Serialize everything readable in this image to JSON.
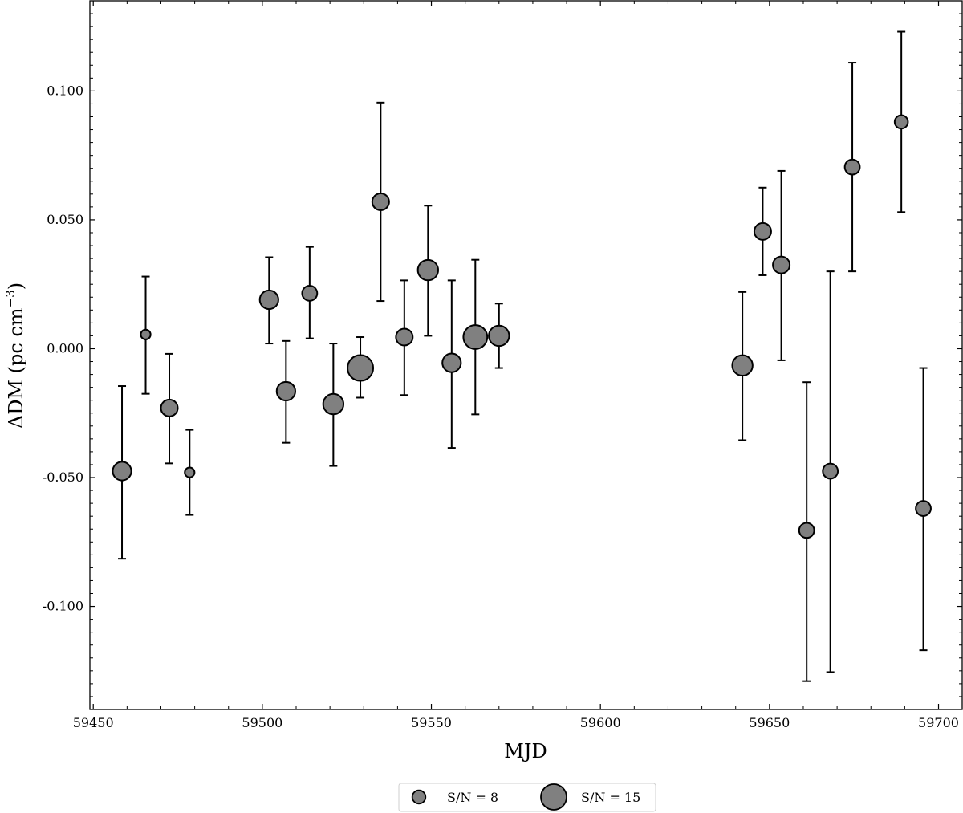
{
  "chart_data": {
    "type": "scatter",
    "title": "",
    "xlabel": "MJD",
    "ylabel": "ΔDM (pc cm",
    "ylabel_sup": "−3",
    "ylabel_close": ")",
    "xlim": [
      59449,
      59707
    ],
    "ylim": [
      -0.14,
      0.135
    ],
    "xticks": [
      59450,
      59500,
      59550,
      59600,
      59650,
      59700
    ],
    "xtick_labels": [
      "59450",
      "59500",
      "59550",
      "59600",
      "59650",
      "59700"
    ],
    "yticks": [
      -0.1,
      -0.05,
      0.0,
      0.05,
      0.1
    ],
    "ytick_labels": [
      "-0.100",
      "-0.050",
      "0.000",
      "0.050",
      "0.100"
    ],
    "grid": false,
    "marker_color": "#808080",
    "edge_color": "#000000",
    "legend_position": "below plot, center",
    "legend": [
      {
        "label": "S/N = 8",
        "snr": 8
      },
      {
        "label": "S/N = 15",
        "snr": 15
      }
    ],
    "points": [
      {
        "x": 59458.5,
        "y": -0.0475,
        "lo": -0.0815,
        "hi": -0.0145,
        "snr": 11
      },
      {
        "x": 59465.5,
        "y": 0.0055,
        "lo": -0.0175,
        "hi": 0.028,
        "snr": 6
      },
      {
        "x": 59472.5,
        "y": -0.023,
        "lo": -0.0445,
        "hi": -0.002,
        "snr": 10
      },
      {
        "x": 59478.5,
        "y": -0.048,
        "lo": -0.0645,
        "hi": -0.0315,
        "snr": 6
      },
      {
        "x": 59502.0,
        "y": 0.019,
        "lo": 0.002,
        "hi": 0.0355,
        "snr": 11
      },
      {
        "x": 59507.0,
        "y": -0.0165,
        "lo": -0.0365,
        "hi": 0.003,
        "snr": 11
      },
      {
        "x": 59514.0,
        "y": 0.0215,
        "lo": 0.004,
        "hi": 0.0395,
        "snr": 9
      },
      {
        "x": 59521.0,
        "y": -0.0215,
        "lo": -0.0455,
        "hi": 0.002,
        "snr": 12
      },
      {
        "x": 59529.0,
        "y": -0.0075,
        "lo": -0.019,
        "hi": 0.0045,
        "snr": 15
      },
      {
        "x": 59535.0,
        "y": 0.057,
        "lo": 0.0185,
        "hi": 0.0955,
        "snr": 10
      },
      {
        "x": 59542.0,
        "y": 0.0045,
        "lo": -0.018,
        "hi": 0.0265,
        "snr": 10
      },
      {
        "x": 59549.0,
        "y": 0.0305,
        "lo": 0.005,
        "hi": 0.0555,
        "snr": 12
      },
      {
        "x": 59556.0,
        "y": -0.0055,
        "lo": -0.0385,
        "hi": 0.0265,
        "snr": 11
      },
      {
        "x": 59563.0,
        "y": 0.0045,
        "lo": -0.0255,
        "hi": 0.0345,
        "snr": 14
      },
      {
        "x": 59570.0,
        "y": 0.005,
        "lo": -0.0075,
        "hi": 0.0175,
        "snr": 12
      },
      {
        "x": 59642.0,
        "y": -0.0065,
        "lo": -0.0355,
        "hi": 0.022,
        "snr": 12
      },
      {
        "x": 59648.0,
        "y": 0.0455,
        "lo": 0.0285,
        "hi": 0.0625,
        "snr": 10
      },
      {
        "x": 59653.5,
        "y": 0.0325,
        "lo": -0.0045,
        "hi": 0.069,
        "snr": 10
      },
      {
        "x": 59661.0,
        "y": -0.0705,
        "lo": -0.129,
        "hi": -0.013,
        "snr": 9
      },
      {
        "x": 59668.0,
        "y": -0.0475,
        "lo": -0.1255,
        "hi": 0.03,
        "snr": 9
      },
      {
        "x": 59674.5,
        "y": 0.0705,
        "lo": 0.03,
        "hi": 0.111,
        "snr": 9
      },
      {
        "x": 59689.0,
        "y": 0.088,
        "lo": 0.053,
        "hi": 0.123,
        "snr": 8
      },
      {
        "x": 59695.5,
        "y": -0.062,
        "lo": -0.117,
        "hi": -0.0075,
        "snr": 9
      }
    ]
  }
}
